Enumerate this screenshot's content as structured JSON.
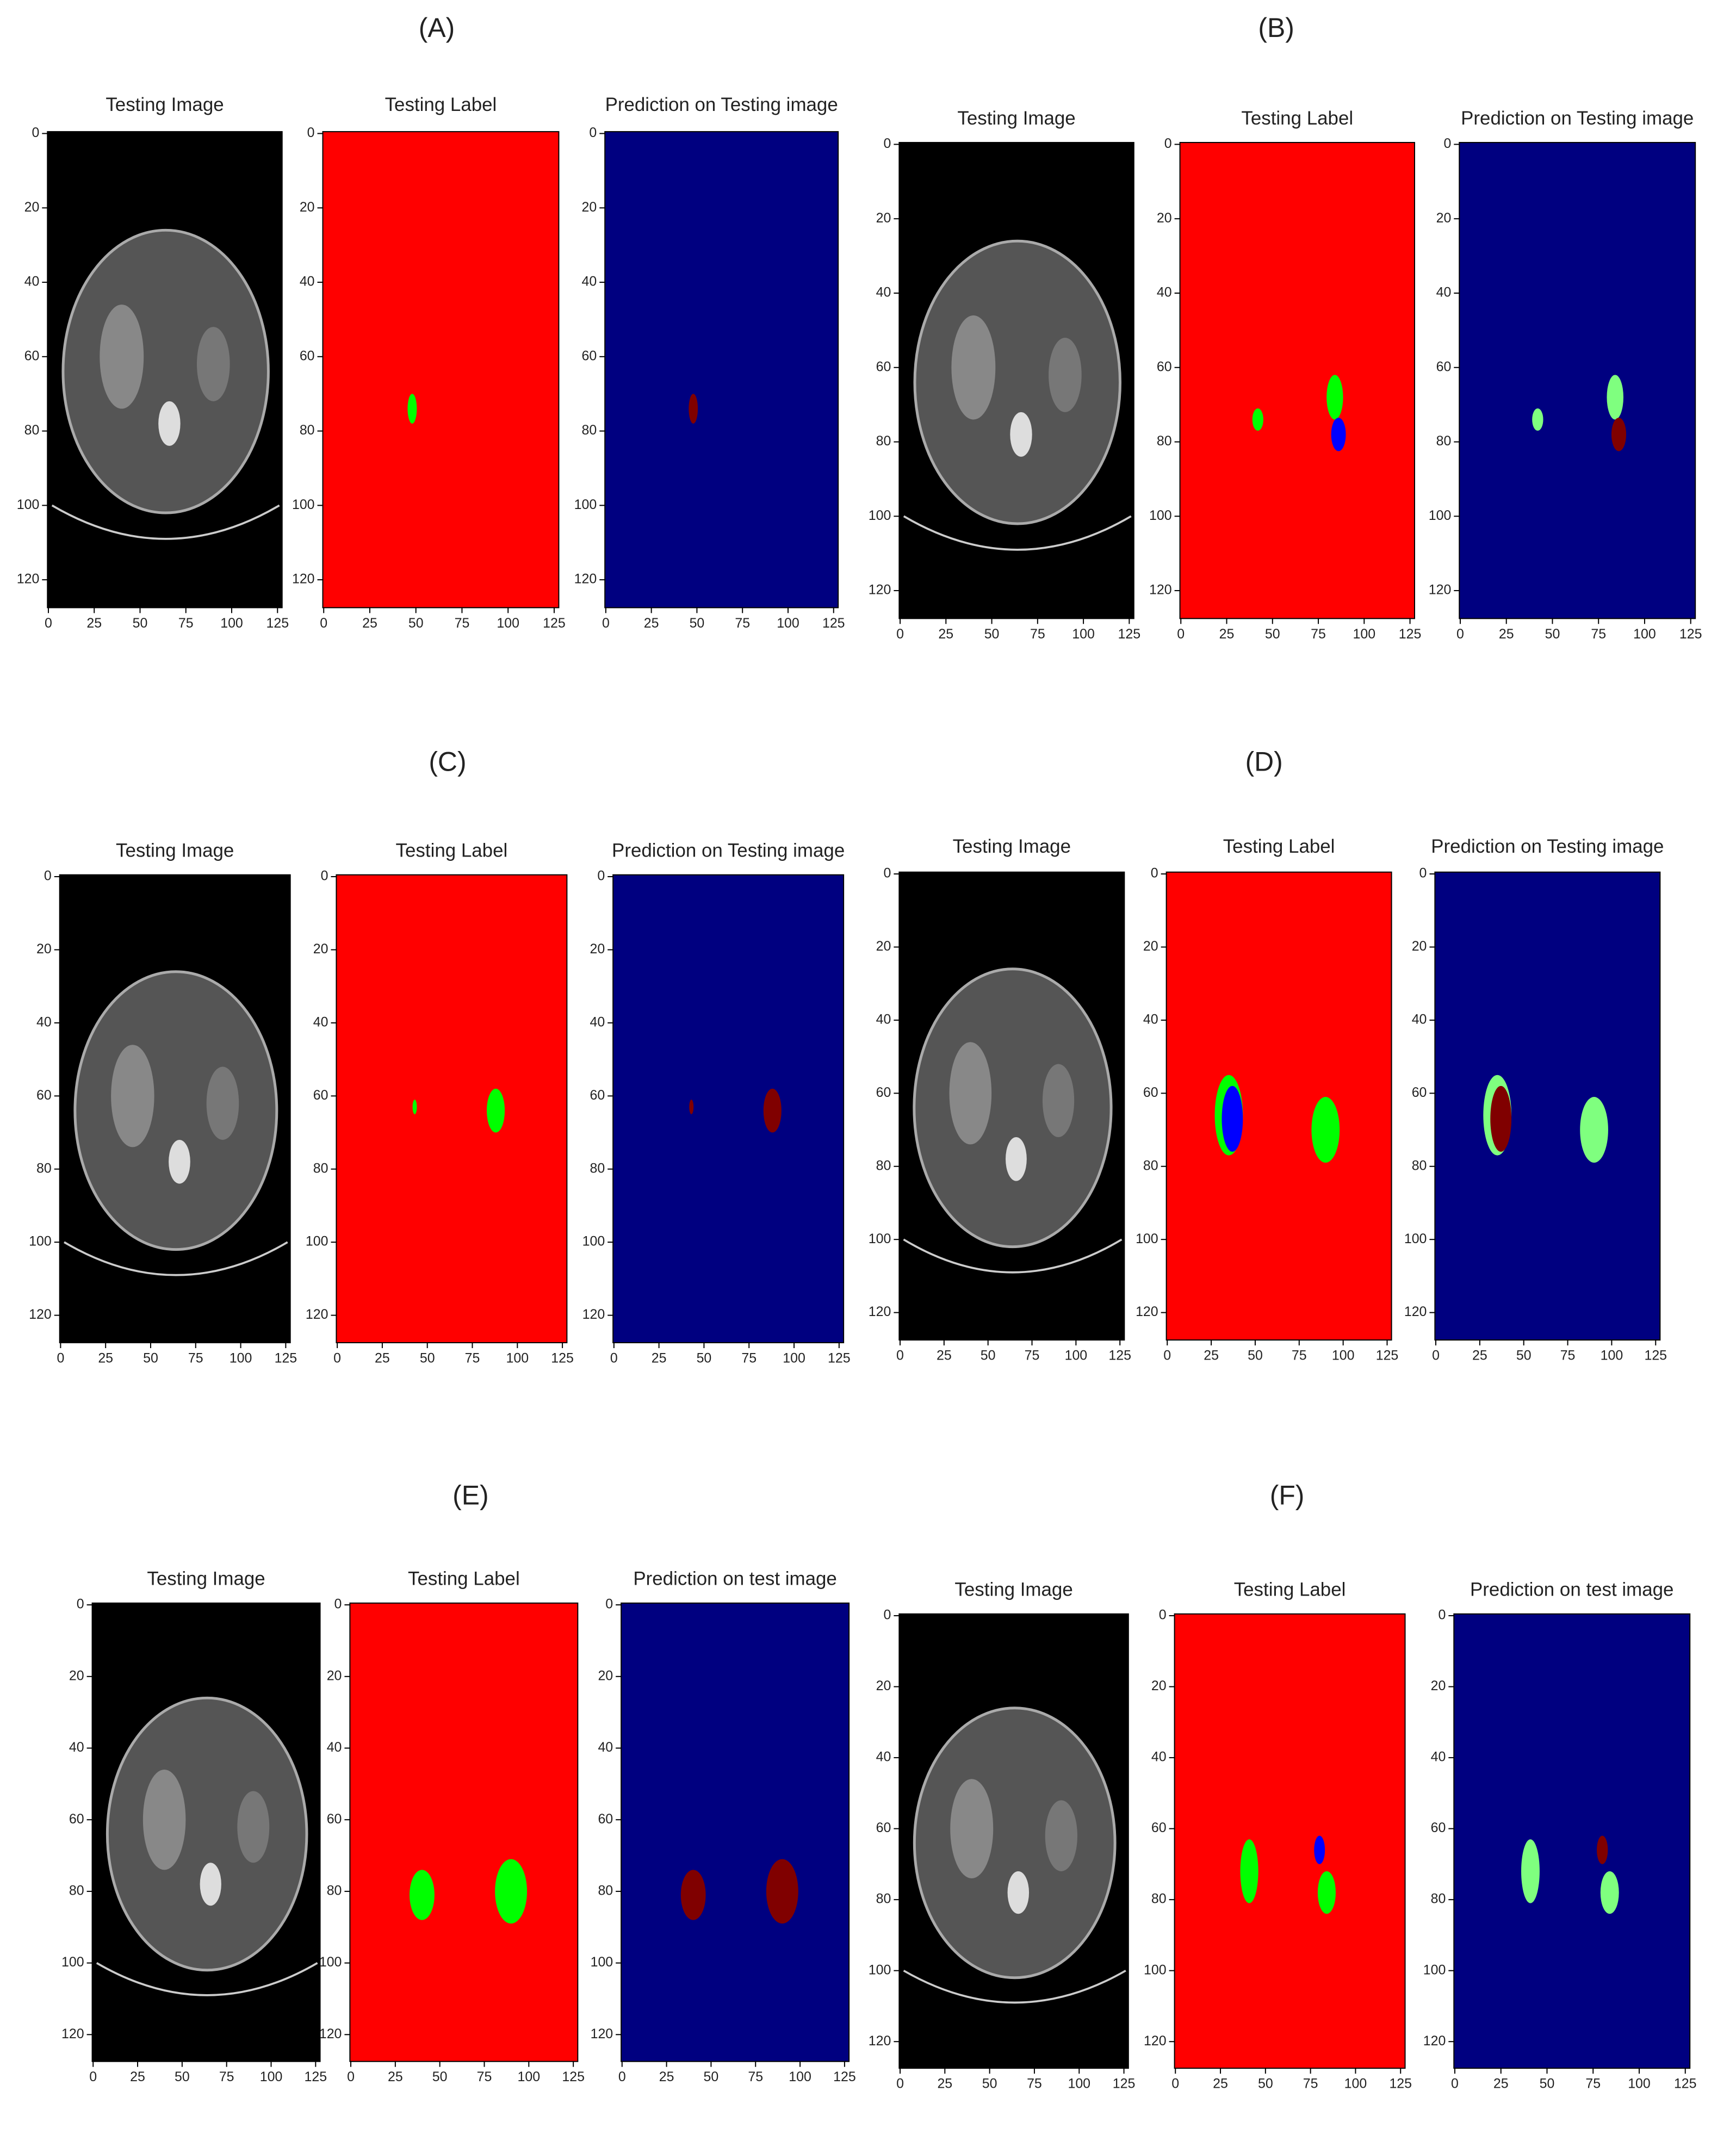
{
  "figure": {
    "xticks": [
      0,
      25,
      50,
      75,
      100,
      125
    ],
    "yticks": [
      0,
      20,
      40,
      60,
      80,
      100,
      120
    ],
    "xlim": [
      -0.5,
      127.5
    ],
    "ylim": [
      127.5,
      -0.5
    ],
    "panels": [
      {
        "label": "(A)",
        "plots": [
          {
            "title": "Testing Image"
          },
          {
            "title": "Testing Label"
          },
          {
            "title": "Prediction on Testing image"
          }
        ]
      },
      {
        "label": "(B)",
        "plots": [
          {
            "title": "Testing Image"
          },
          {
            "title": "Testing Label"
          },
          {
            "title": "Prediction on Testing image"
          }
        ]
      },
      {
        "label": "(C)",
        "plots": [
          {
            "title": "Testing Image"
          },
          {
            "title": "Testing Label"
          },
          {
            "title": "Prediction on Testing image"
          }
        ]
      },
      {
        "label": "(D)",
        "plots": [
          {
            "title": "Testing Image"
          },
          {
            "title": "Testing Label"
          },
          {
            "title": "Prediction on Testing image"
          }
        ]
      },
      {
        "label": "(E)",
        "plots": [
          {
            "title": "Testing Image"
          },
          {
            "title": "Testing Label"
          },
          {
            "title": "Prediction on test image"
          }
        ]
      },
      {
        "label": "(F)",
        "plots": [
          {
            "title": "Testing Image"
          },
          {
            "title": "Testing Label"
          },
          {
            "title": "Prediction on test image"
          }
        ]
      }
    ]
  }
}
